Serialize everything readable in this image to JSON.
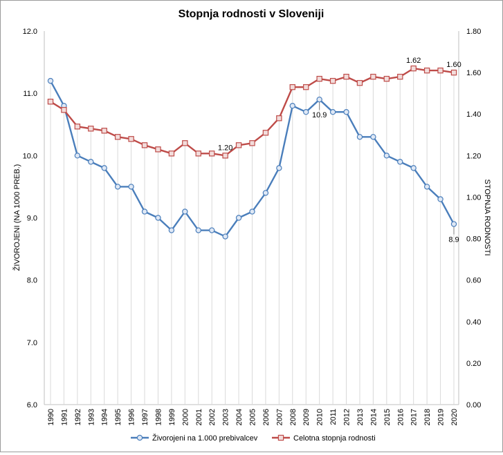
{
  "chart_data": {
    "type": "line",
    "title": "Stopnja rodnosti v Sloveniji",
    "x": [
      "1990",
      "1991",
      "1992",
      "1993",
      "1994",
      "1995",
      "1996",
      "1997",
      "1998",
      "1999",
      "2000",
      "2001",
      "2002",
      "2003",
      "2004",
      "2005",
      "2006",
      "2007",
      "2008",
      "2009",
      "2010",
      "2011",
      "2012",
      "2013",
      "2014",
      "2015",
      "2016",
      "2017",
      "2018",
      "2019",
      "2020"
    ],
    "y_left": {
      "label": "ŽIVOROJENI (NA 1000 PREB.)",
      "range": [
        6.0,
        12.0
      ],
      "ticks": [
        "6.0",
        "7.0",
        "8.0",
        "9.0",
        "10.0",
        "11.0",
        "12.0"
      ],
      "tick_values": [
        6,
        7,
        8,
        9,
        10,
        11,
        12
      ]
    },
    "y_right": {
      "label": "STOPNJA RODNOSTI",
      "range": [
        0.0,
        1.8
      ],
      "ticks": [
        "0.00",
        "0.20",
        "0.40",
        "0.60",
        "0.80",
        "1.00",
        "1.20",
        "1.40",
        "1.60",
        "1.80"
      ],
      "tick_values": [
        0,
        0.2,
        0.4,
        0.6,
        0.8,
        1.0,
        1.2,
        1.4,
        1.6,
        1.8
      ]
    },
    "series": [
      {
        "name": "Živorojeni na 1.000 prebivalcev",
        "axis": "left",
        "color": "#4a7ebb",
        "marker": "circle",
        "values": [
          11.2,
          10.8,
          10.0,
          9.9,
          9.8,
          9.5,
          9.5,
          9.1,
          9.0,
          8.8,
          9.1,
          8.8,
          8.8,
          8.7,
          9.0,
          9.1,
          9.4,
          9.8,
          10.8,
          10.7,
          10.9,
          10.7,
          10.7,
          10.3,
          10.3,
          10.0,
          9.9,
          9.8,
          9.5,
          9.3,
          8.9
        ]
      },
      {
        "name": "Celotna stopnja rodnosti",
        "axis": "right",
        "color": "#be4b48",
        "marker": "square",
        "values": [
          1.46,
          1.42,
          1.34,
          1.33,
          1.32,
          1.29,
          1.28,
          1.25,
          1.23,
          1.21,
          1.26,
          1.21,
          1.21,
          1.2,
          1.25,
          1.26,
          1.31,
          1.38,
          1.53,
          1.53,
          1.57,
          1.56,
          1.58,
          1.55,
          1.58,
          1.57,
          1.58,
          1.62,
          1.61,
          1.61,
          1.6
        ]
      }
    ],
    "annotations": [
      {
        "series": 0,
        "index": 20,
        "text": "10.9"
      },
      {
        "series": 0,
        "index": 30,
        "text": "8.9"
      },
      {
        "series": 1,
        "index": 13,
        "text": "1.20"
      },
      {
        "series": 1,
        "index": 27,
        "text": "1.62"
      },
      {
        "series": 1,
        "index": 30,
        "text": "1.60"
      }
    ],
    "legend_position": "bottom",
    "grid": "vertical"
  }
}
